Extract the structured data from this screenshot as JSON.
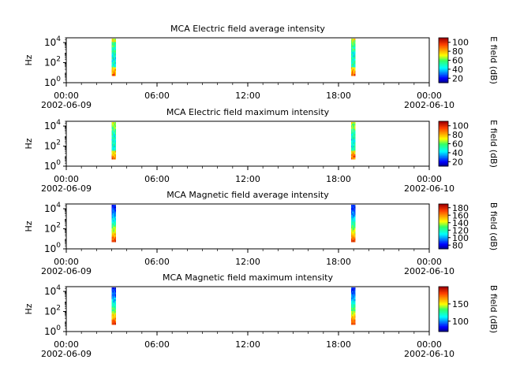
{
  "chart_data": [
    {
      "type": "heatmap",
      "title": "MCA  Electric field average intensity",
      "ylabel": "Hz",
      "y_scale": "log",
      "ylim": [
        1,
        30000
      ],
      "y_ticks": [
        {
          "value": 1,
          "base": "10",
          "exp": "0"
        },
        {
          "value": 100,
          "base": "10",
          "exp": "2"
        },
        {
          "value": 10000,
          "base": "10",
          "exp": "4"
        }
      ],
      "x_ticks": [
        "00:00",
        "06:00",
        "12:00",
        "18:00",
        "00:00"
      ],
      "x_date_start": "2002-06-09",
      "x_date_end": "2002-06-10",
      "colorbar": {
        "label": "E field (dB)",
        "min": 10,
        "max": 110,
        "ticks": [
          20,
          40,
          60,
          80,
          100
        ]
      },
      "bursts": [
        {
          "start": "03:00",
          "end": "03:16",
          "freq_min": 5,
          "freq_max": 25000
        },
        {
          "start": "18:50",
          "end": "19:06",
          "freq_min": 5,
          "freq_max": 25000
        }
      ]
    },
    {
      "type": "heatmap",
      "title": "MCA  Electric field maximum intensity",
      "ylabel": "Hz",
      "y_scale": "log",
      "ylim": [
        1,
        30000
      ],
      "y_ticks": [
        {
          "value": 1,
          "base": "10",
          "exp": "0"
        },
        {
          "value": 100,
          "base": "10",
          "exp": "2"
        },
        {
          "value": 10000,
          "base": "10",
          "exp": "4"
        }
      ],
      "x_ticks": [
        "00:00",
        "06:00",
        "12:00",
        "18:00",
        "00:00"
      ],
      "x_date_start": "2002-06-09",
      "x_date_end": "2002-06-10",
      "colorbar": {
        "label": "E field (dB)",
        "min": 10,
        "max": 110,
        "ticks": [
          20,
          40,
          60,
          80,
          100
        ]
      },
      "bursts": [
        {
          "start": "03:00",
          "end": "03:16",
          "freq_min": 5,
          "freq_max": 25000
        },
        {
          "start": "18:50",
          "end": "19:06",
          "freq_min": 5,
          "freq_max": 25000
        }
      ]
    },
    {
      "type": "heatmap",
      "title": "MCA  Magnetic field average intensity",
      "ylabel": "Hz",
      "y_scale": "log",
      "ylim": [
        1,
        30000
      ],
      "y_ticks": [
        {
          "value": 1,
          "base": "10",
          "exp": "0"
        },
        {
          "value": 100,
          "base": "10",
          "exp": "2"
        },
        {
          "value": 10000,
          "base": "10",
          "exp": "4"
        }
      ],
      "x_ticks": [
        "00:00",
        "06:00",
        "12:00",
        "18:00",
        "00:00"
      ],
      "x_date_start": "2002-06-09",
      "x_date_end": "2002-06-10",
      "colorbar": {
        "label": "B field (dB)",
        "min": 70,
        "max": 190,
        "ticks": [
          80,
          100,
          120,
          140,
          160,
          180
        ]
      },
      "bursts": [
        {
          "start": "03:00",
          "end": "03:16",
          "freq_min": 5,
          "freq_max": 25000
        },
        {
          "start": "18:50",
          "end": "19:06",
          "freq_min": 5,
          "freq_max": 25000
        }
      ]
    },
    {
      "type": "heatmap",
      "title": "MCA  Magnetic field maximum intensity",
      "ylabel": "Hz",
      "y_scale": "log",
      "ylim": [
        1,
        30000
      ],
      "y_ticks": [
        {
          "value": 1,
          "base": "10",
          "exp": "0"
        },
        {
          "value": 100,
          "base": "10",
          "exp": "2"
        },
        {
          "value": 10000,
          "base": "10",
          "exp": "4"
        }
      ],
      "x_ticks": [
        "00:00",
        "06:00",
        "12:00",
        "18:00",
        "00:00"
      ],
      "x_date_start": "2002-06-09",
      "x_date_end": "2002-06-10",
      "colorbar": {
        "label": "B field (dB)",
        "min": 70,
        "max": 200,
        "ticks": [
          100,
          150
        ]
      },
      "bursts": [
        {
          "start": "03:00",
          "end": "03:16",
          "freq_min": 5,
          "freq_max": 25000
        },
        {
          "start": "18:50",
          "end": "19:06",
          "freq_min": 5,
          "freq_max": 25000
        }
      ]
    }
  ]
}
